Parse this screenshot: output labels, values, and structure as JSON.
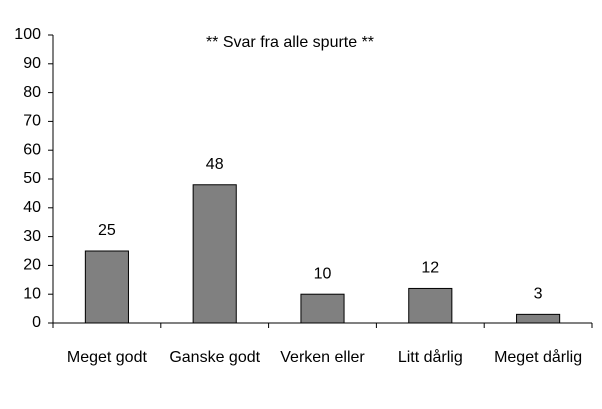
{
  "chart_data": {
    "type": "bar",
    "title": "**  Svar fra alle spurte  **",
    "categories": [
      "Meget godt",
      "Ganske godt",
      "Verken eller",
      "Litt dårlig",
      "Meget dårlig"
    ],
    "values": [
      25,
      48,
      10,
      12,
      3
    ],
    "color": "#808080",
    "ylim": [
      0,
      100
    ],
    "yticks": [
      0,
      10,
      20,
      30,
      40,
      50,
      60,
      70,
      80,
      90,
      100
    ],
    "grid": false
  }
}
